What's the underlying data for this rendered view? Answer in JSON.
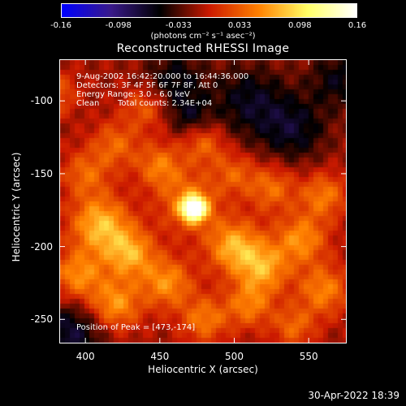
{
  "chart_data": {
    "type": "heatmap",
    "title": "Reconstructed RHESSI Image",
    "xlabel": "Heliocentric X (arcsec)",
    "ylabel": "Heliocentric Y (arcsec)",
    "xlim": [
      383,
      575
    ],
    "ylim": [
      -266,
      -72
    ],
    "x_ticks": [
      "400",
      "450",
      "500",
      "550"
    ],
    "x_tick_values": [
      400,
      450,
      500,
      550
    ],
    "y_ticks": [
      "-100",
      "-150",
      "-200",
      "-250"
    ],
    "y_tick_values": [
      -100,
      -150,
      -200,
      -250
    ],
    "colorbar": {
      "range": [
        -0.16,
        0.16
      ],
      "tick_labels": [
        "-0.16",
        "-0.098",
        "-0.033",
        "0.033",
        "0.098",
        "0.16"
      ],
      "tick_values": [
        -0.16,
        -0.098,
        -0.033,
        0.033,
        0.098,
        0.16
      ],
      "units": "(photons cm⁻² s⁻¹ asec⁻²)",
      "colors": [
        "#0000ff",
        "#3a1a8a",
        "#000000",
        "#cc1a00",
        "#ff8000",
        "#ffff66",
        "#ffffff"
      ]
    },
    "annotations": {
      "time_range": "9-Aug-2002 16:42:20.000 to 16:44:36.000",
      "detectors": "Detectors: 3F 4F 5F 6F 7F 8F, Att 0",
      "energy_range": "Energy Range: 3.0 - 6.0 keV",
      "method": "Clean",
      "total_counts": "Total counts: 2.34E+04",
      "peak_position": "Position of Peak = [473,-174]"
    },
    "peak": {
      "x": 473,
      "y": -174
    },
    "features": [
      {
        "x": 473,
        "y": -174,
        "amp": 0.16,
        "sigma": 6
      },
      {
        "x": 470,
        "y": -170,
        "amp": 0.06,
        "sigma": 14
      },
      {
        "x": 410,
        "y": -185,
        "amp": 0.09,
        "sigma": 14
      },
      {
        "x": 430,
        "y": -205,
        "amp": 0.08,
        "sigma": 12
      },
      {
        "x": 395,
        "y": -220,
        "amp": 0.07,
        "sigma": 12
      },
      {
        "x": 420,
        "y": -240,
        "amp": 0.075,
        "sigma": 12
      },
      {
        "x": 455,
        "y": -225,
        "amp": 0.07,
        "sigma": 12
      },
      {
        "x": 500,
        "y": -200,
        "amp": 0.085,
        "sigma": 13
      },
      {
        "x": 520,
        "y": -215,
        "amp": 0.075,
        "sigma": 12
      },
      {
        "x": 545,
        "y": -195,
        "amp": 0.07,
        "sigma": 12
      },
      {
        "x": 560,
        "y": -230,
        "amp": 0.065,
        "sigma": 12
      },
      {
        "x": 510,
        "y": -240,
        "amp": 0.06,
        "sigma": 11
      },
      {
        "x": 480,
        "y": -250,
        "amp": 0.06,
        "sigma": 11
      },
      {
        "x": 560,
        "y": -165,
        "amp": 0.06,
        "sigma": 11
      },
      {
        "x": 525,
        "y": -160,
        "amp": 0.055,
        "sigma": 11
      },
      {
        "x": 450,
        "y": -145,
        "amp": 0.06,
        "sigma": 11
      },
      {
        "x": 480,
        "y": -130,
        "amp": 0.05,
        "sigma": 10
      },
      {
        "x": 420,
        "y": -130,
        "amp": 0.05,
        "sigma": 11
      },
      {
        "x": 440,
        "y": -105,
        "amp": 0.045,
        "sigma": 10
      },
      {
        "x": 400,
        "y": -150,
        "amp": 0.05,
        "sigma": 11
      },
      {
        "x": 500,
        "y": -150,
        "amp": 0.045,
        "sigma": 10
      },
      {
        "x": 380,
        "y": -95,
        "amp": 0.045,
        "sigma": 10
      },
      {
        "x": 540,
        "y": -255,
        "amp": 0.05,
        "sigma": 10
      },
      {
        "x": 390,
        "y": -260,
        "amp": -0.06,
        "sigma": 16
      },
      {
        "x": 510,
        "y": -100,
        "amp": -0.05,
        "sigma": 18
      },
      {
        "x": 540,
        "y": -120,
        "amp": -0.05,
        "sigma": 16
      },
      {
        "x": 460,
        "y": -85,
        "amp": -0.045,
        "sigma": 14
      },
      {
        "x": 570,
        "y": -85,
        "amp": -0.045,
        "sigma": 14
      },
      {
        "x": 470,
        "y": -110,
        "amp": -0.04,
        "sigma": 10
      }
    ]
  },
  "footer": {
    "timestamp": "30-Apr-2022 18:39"
  }
}
